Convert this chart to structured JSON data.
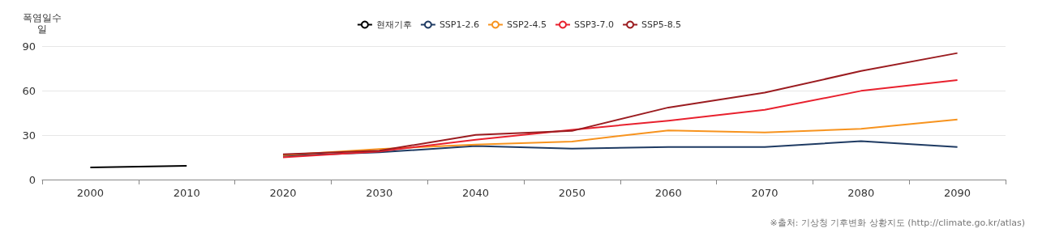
{
  "chart_data": {
    "type": "line",
    "ylabel": "폭염일수\n일",
    "categories": [
      "2000",
      "2010",
      "2020",
      "2030",
      "2040",
      "2050",
      "2060",
      "2070",
      "2080",
      "2090"
    ],
    "series": [
      {
        "name": "현재기후",
        "color": "#000000",
        "values": [
          8.2,
          9.3,
          null,
          null,
          null,
          null,
          null,
          null,
          null,
          null
        ]
      },
      {
        "name": "SSP1-2.6",
        "color": "#1f3b63",
        "values": [
          null,
          null,
          16,
          18.4,
          22.6,
          20.8,
          22,
          22,
          25.9,
          22
        ]
      },
      {
        "name": "SSP2-4.5",
        "color": "#f7931e",
        "values": [
          null,
          null,
          16.5,
          20.6,
          23.6,
          25.7,
          33.2,
          31.8,
          34.2,
          40.5
        ]
      },
      {
        "name": "SSP3-7.0",
        "color": "#e8212e",
        "values": [
          null,
          null,
          15,
          19,
          26.8,
          33.6,
          39.7,
          47,
          59.8,
          67.1
        ]
      },
      {
        "name": "SSP5-8.5",
        "color": "#9b1c20",
        "values": [
          null,
          null,
          17,
          19.5,
          30.1,
          32.8,
          48.6,
          58.6,
          73.2,
          85.3
        ]
      }
    ],
    "ylim": [
      0,
      90
    ],
    "yticks": [
      0,
      30,
      60,
      90
    ],
    "grid": "y",
    "legend": "top",
    "marker": "none",
    "line_style": "solid",
    "annotations": [
      "※출처: 기상청 기후변화 상황지도 (http://climate.go.kr/atlas)"
    ]
  }
}
